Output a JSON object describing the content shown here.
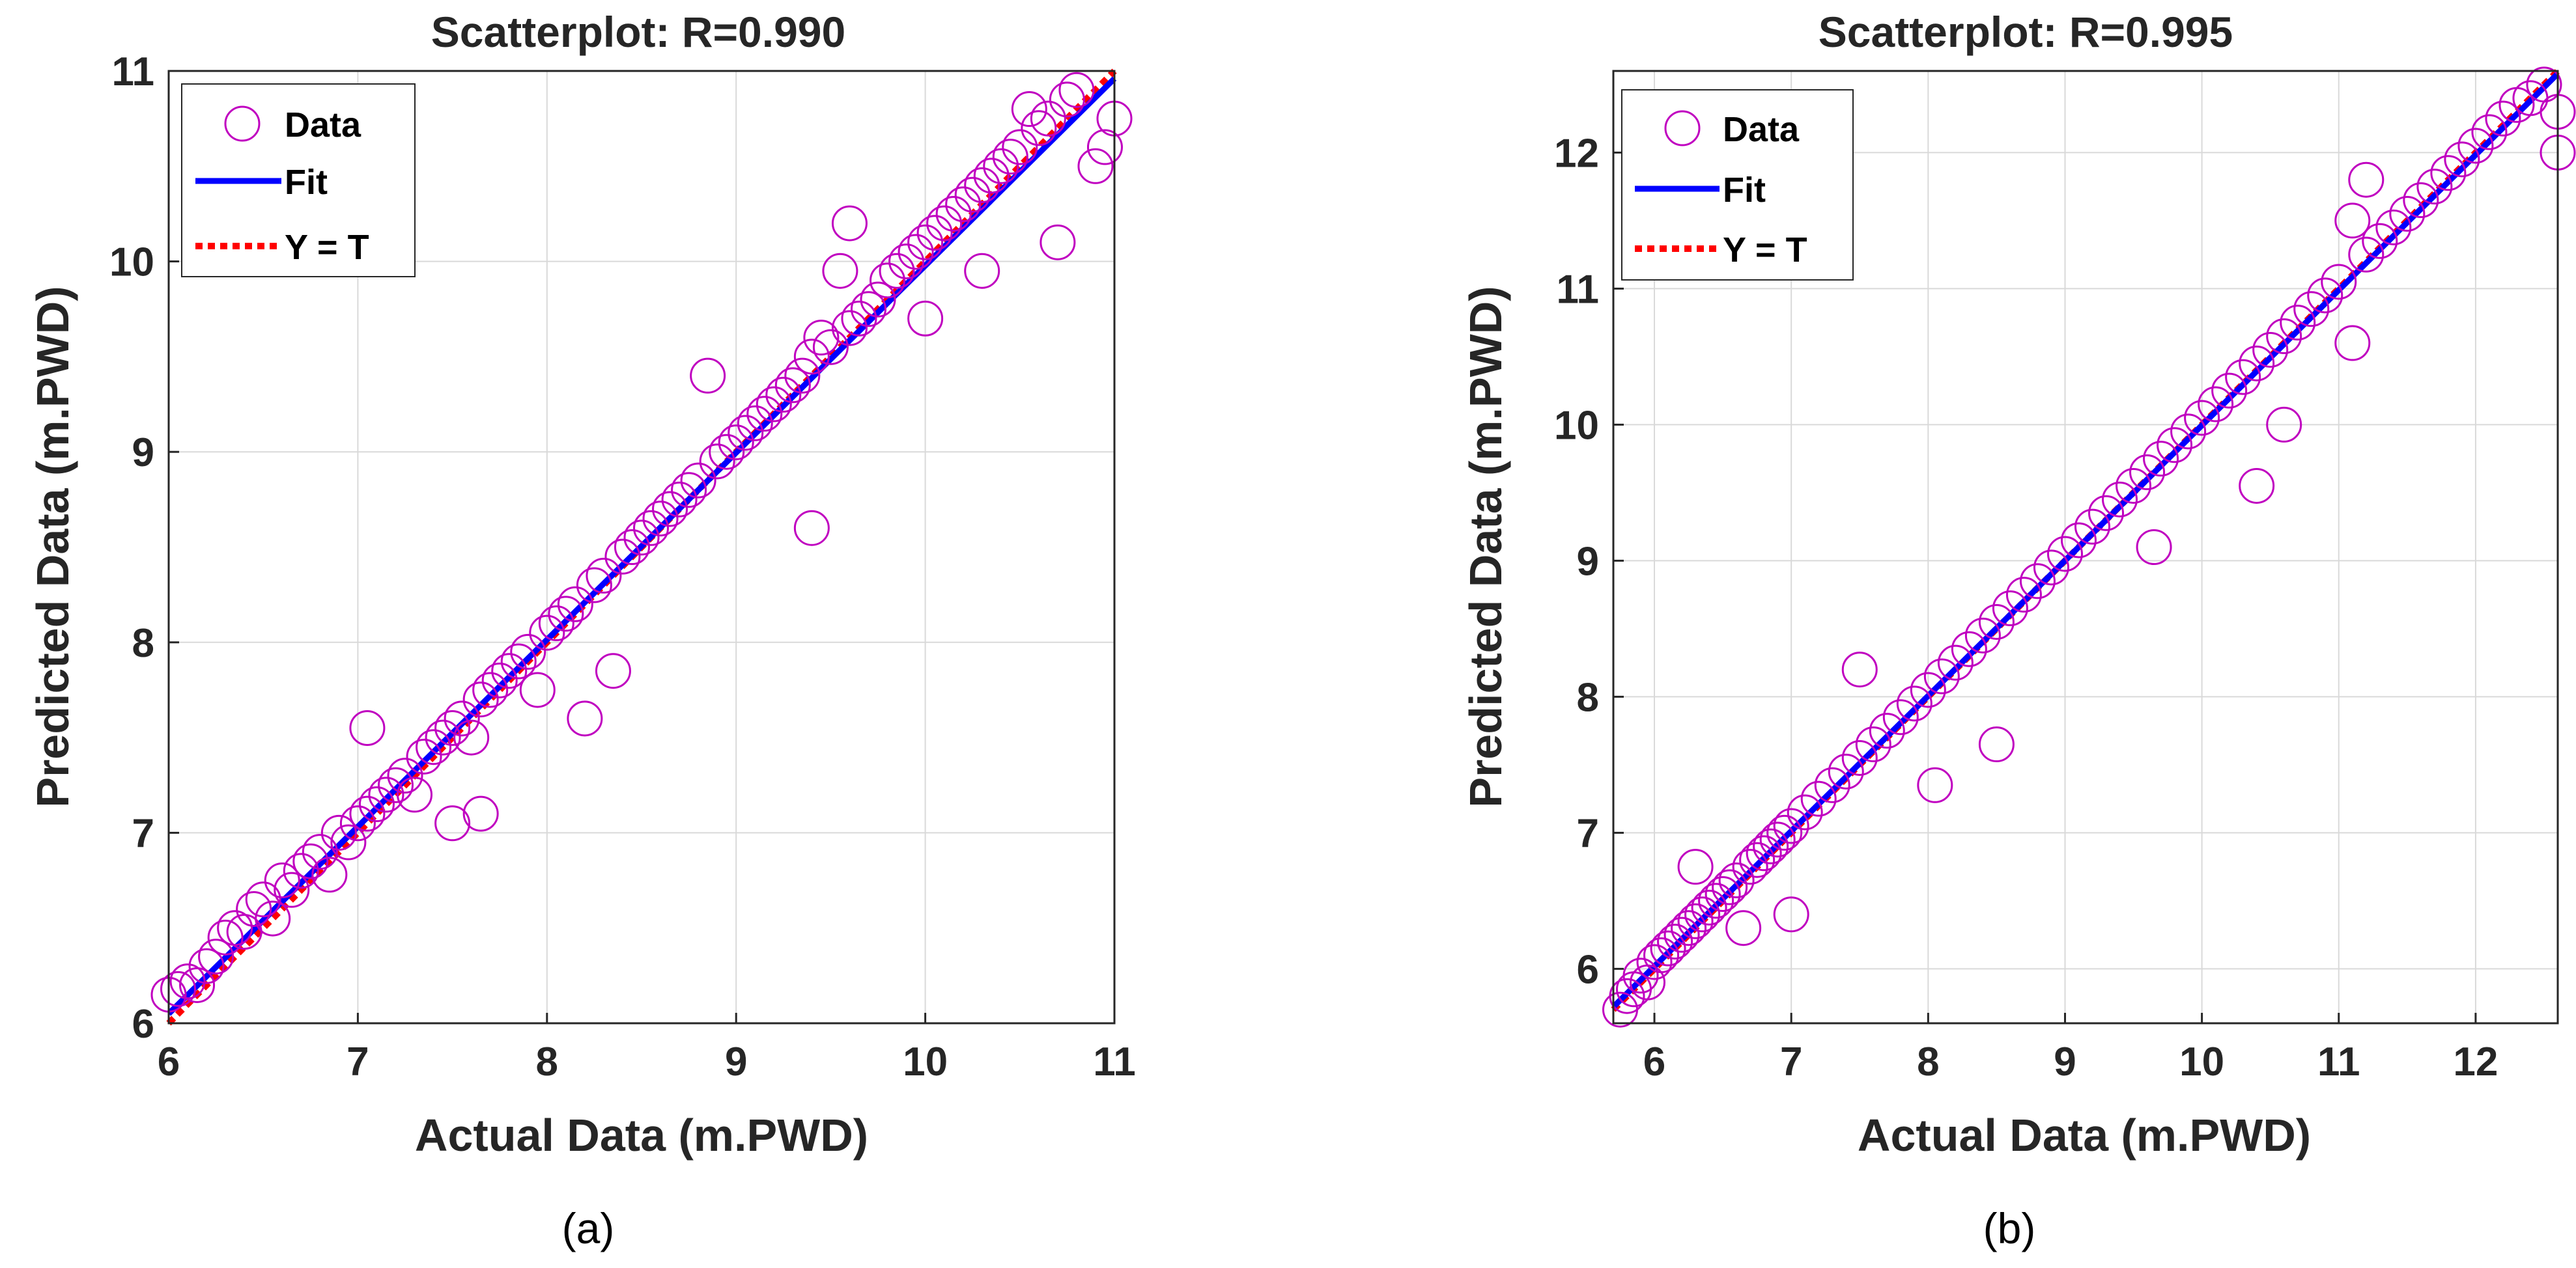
{
  "chart_data": [
    {
      "type": "scatter",
      "panel_label": "(a)",
      "title": "Scatterplot: R=0.990",
      "xlabel": "Actual Data (m.PWD)",
      "ylabel": "Predicted Data (m.PWD)",
      "xlim": [
        6,
        11
      ],
      "ylim": [
        6,
        11
      ],
      "xticks": [
        6,
        7,
        8,
        9,
        10,
        11
      ],
      "yticks": [
        6,
        7,
        8,
        9,
        10,
        11
      ],
      "grid": true,
      "legend_position": "top-left",
      "legend": {
        "data": "Data",
        "fit": "Fit",
        "ideal": "Y = T"
      },
      "fit_line": {
        "x": [
          6,
          11
        ],
        "y": [
          6.05,
          10.96
        ]
      },
      "ideal_line": {
        "x": [
          6,
          11
        ],
        "y": [
          6,
          11
        ]
      },
      "colors": {
        "data": "#c000c0",
        "fit": "#0000ff",
        "ideal": "#ff0000"
      },
      "series": [
        {
          "name": "Data",
          "points": [
            [
              6.0,
              6.15
            ],
            [
              6.05,
              6.18
            ],
            [
              6.1,
              6.22
            ],
            [
              6.15,
              6.2
            ],
            [
              6.2,
              6.3
            ],
            [
              6.25,
              6.35
            ],
            [
              6.3,
              6.45
            ],
            [
              6.35,
              6.5
            ],
            [
              6.4,
              6.48
            ],
            [
              6.45,
              6.6
            ],
            [
              6.5,
              6.65
            ],
            [
              6.55,
              6.55
            ],
            [
              6.6,
              6.75
            ],
            [
              6.65,
              6.7
            ],
            [
              6.7,
              6.8
            ],
            [
              6.75,
              6.85
            ],
            [
              6.8,
              6.9
            ],
            [
              6.85,
              6.78
            ],
            [
              6.9,
              7.0
            ],
            [
              6.95,
              6.95
            ],
            [
              7.0,
              7.05
            ],
            [
              7.05,
              7.1
            ],
            [
              7.05,
              7.55
            ],
            [
              7.1,
              7.15
            ],
            [
              7.15,
              7.2
            ],
            [
              7.2,
              7.25
            ],
            [
              7.25,
              7.3
            ],
            [
              7.3,
              7.2
            ],
            [
              7.35,
              7.4
            ],
            [
              7.4,
              7.45
            ],
            [
              7.45,
              7.5
            ],
            [
              7.5,
              7.05
            ],
            [
              7.5,
              7.55
            ],
            [
              7.55,
              7.6
            ],
            [
              7.6,
              7.5
            ],
            [
              7.65,
              7.1
            ],
            [
              7.65,
              7.7
            ],
            [
              7.7,
              7.75
            ],
            [
              7.75,
              7.8
            ],
            [
              7.8,
              7.85
            ],
            [
              7.85,
              7.9
            ],
            [
              7.9,
              7.95
            ],
            [
              7.95,
              7.75
            ],
            [
              8.0,
              8.05
            ],
            [
              8.05,
              8.1
            ],
            [
              8.1,
              8.15
            ],
            [
              8.15,
              8.2
            ],
            [
              8.2,
              7.6
            ],
            [
              8.25,
              8.3
            ],
            [
              8.3,
              8.35
            ],
            [
              8.35,
              7.85
            ],
            [
              8.4,
              8.45
            ],
            [
              8.45,
              8.5
            ],
            [
              8.5,
              8.55
            ],
            [
              8.55,
              8.6
            ],
            [
              8.6,
              8.65
            ],
            [
              8.65,
              8.7
            ],
            [
              8.7,
              8.75
            ],
            [
              8.75,
              8.8
            ],
            [
              8.8,
              8.85
            ],
            [
              8.85,
              9.4
            ],
            [
              8.9,
              8.95
            ],
            [
              8.95,
              9.0
            ],
            [
              9.0,
              9.05
            ],
            [
              9.05,
              9.1
            ],
            [
              9.1,
              9.15
            ],
            [
              9.15,
              9.2
            ],
            [
              9.2,
              9.25
            ],
            [
              9.25,
              9.3
            ],
            [
              9.3,
              9.35
            ],
            [
              9.35,
              9.4
            ],
            [
              9.4,
              8.6
            ],
            [
              9.4,
              9.5
            ],
            [
              9.45,
              9.6
            ],
            [
              9.5,
              9.55
            ],
            [
              9.55,
              9.95
            ],
            [
              9.6,
              10.2
            ],
            [
              9.6,
              9.65
            ],
            [
              9.65,
              9.7
            ],
            [
              9.7,
              9.75
            ],
            [
              9.75,
              9.8
            ],
            [
              9.8,
              9.9
            ],
            [
              9.85,
              9.95
            ],
            [
              9.9,
              10.0
            ],
            [
              9.95,
              10.05
            ],
            [
              10.0,
              10.1
            ],
            [
              10.0,
              9.7
            ],
            [
              10.05,
              10.15
            ],
            [
              10.1,
              10.2
            ],
            [
              10.15,
              10.25
            ],
            [
              10.2,
              10.3
            ],
            [
              10.25,
              10.35
            ],
            [
              10.3,
              10.4
            ],
            [
              10.3,
              9.95
            ],
            [
              10.35,
              10.45
            ],
            [
              10.4,
              10.5
            ],
            [
              10.45,
              10.55
            ],
            [
              10.5,
              10.6
            ],
            [
              10.55,
              10.8
            ],
            [
              10.6,
              10.7
            ],
            [
              10.65,
              10.75
            ],
            [
              10.7,
              10.1
            ],
            [
              10.75,
              10.85
            ],
            [
              10.8,
              10.9
            ],
            [
              10.9,
              10.5
            ],
            [
              10.95,
              10.6
            ],
            [
              11.0,
              10.75
            ]
          ]
        }
      ]
    },
    {
      "type": "scatter",
      "panel_label": "(b)",
      "title": "Scatterplot: R=0.995",
      "xlabel": "Actual Data (m.PWD)",
      "ylabel": "Predicted Data (m.PWD)",
      "xlim": [
        5.7,
        12.6
      ],
      "ylim": [
        5.6,
        12.6
      ],
      "xticks": [
        6,
        7,
        8,
        9,
        10,
        11,
        12
      ],
      "yticks": [
        6,
        7,
        8,
        9,
        10,
        11,
        12
      ],
      "grid": true,
      "legend_position": "top-left",
      "legend": {
        "data": "Data",
        "fit": "Fit",
        "ideal": "Y = T"
      },
      "fit_line": {
        "x": [
          5.7,
          12.6
        ],
        "y": [
          5.72,
          12.58
        ]
      },
      "ideal_line": {
        "x": [
          5.7,
          12.6
        ],
        "y": [
          5.7,
          12.6
        ]
      },
      "colors": {
        "data": "#c000c0",
        "fit": "#0000ff",
        "ideal": "#ff0000"
      },
      "series": [
        {
          "name": "Data",
          "points": [
            [
              5.75,
              5.7
            ],
            [
              5.8,
              5.8
            ],
            [
              5.85,
              5.85
            ],
            [
              5.9,
              5.95
            ],
            [
              5.95,
              5.9
            ],
            [
              6.0,
              6.05
            ],
            [
              6.05,
              6.1
            ],
            [
              6.1,
              6.15
            ],
            [
              6.15,
              6.2
            ],
            [
              6.2,
              6.25
            ],
            [
              6.25,
              6.3
            ],
            [
              6.3,
              6.75
            ],
            [
              6.3,
              6.35
            ],
            [
              6.35,
              6.4
            ],
            [
              6.4,
              6.45
            ],
            [
              6.45,
              6.5
            ],
            [
              6.5,
              6.55
            ],
            [
              6.55,
              6.6
            ],
            [
              6.6,
              6.65
            ],
            [
              6.65,
              6.3
            ],
            [
              6.7,
              6.75
            ],
            [
              6.75,
              6.8
            ],
            [
              6.8,
              6.85
            ],
            [
              6.85,
              6.9
            ],
            [
              6.9,
              6.95
            ],
            [
              6.95,
              7.0
            ],
            [
              7.0,
              6.4
            ],
            [
              7.0,
              7.05
            ],
            [
              7.1,
              7.15
            ],
            [
              7.2,
              7.25
            ],
            [
              7.3,
              7.35
            ],
            [
              7.4,
              7.45
            ],
            [
              7.5,
              8.2
            ],
            [
              7.5,
              7.55
            ],
            [
              7.6,
              7.65
            ],
            [
              7.7,
              7.75
            ],
            [
              7.8,
              7.85
            ],
            [
              7.9,
              7.95
            ],
            [
              8.0,
              8.05
            ],
            [
              8.05,
              7.35
            ],
            [
              8.1,
              8.15
            ],
            [
              8.2,
              8.25
            ],
            [
              8.3,
              8.35
            ],
            [
              8.4,
              8.45
            ],
            [
              8.5,
              7.65
            ],
            [
              8.5,
              8.55
            ],
            [
              8.6,
              8.65
            ],
            [
              8.7,
              8.75
            ],
            [
              8.8,
              8.85
            ],
            [
              8.9,
              8.95
            ],
            [
              9.0,
              9.05
            ],
            [
              9.1,
              9.15
            ],
            [
              9.2,
              9.25
            ],
            [
              9.3,
              9.35
            ],
            [
              9.4,
              9.45
            ],
            [
              9.5,
              9.55
            ],
            [
              9.6,
              9.65
            ],
            [
              9.65,
              9.1
            ],
            [
              9.7,
              9.75
            ],
            [
              9.8,
              9.85
            ],
            [
              9.9,
              9.95
            ],
            [
              10.0,
              10.05
            ],
            [
              10.1,
              10.15
            ],
            [
              10.2,
              10.25
            ],
            [
              10.3,
              10.35
            ],
            [
              10.4,
              9.55
            ],
            [
              10.4,
              10.45
            ],
            [
              10.5,
              10.55
            ],
            [
              10.6,
              10.0
            ],
            [
              10.6,
              10.65
            ],
            [
              10.7,
              10.75
            ],
            [
              10.8,
              10.85
            ],
            [
              10.9,
              10.95
            ],
            [
              11.0,
              11.05
            ],
            [
              11.1,
              11.5
            ],
            [
              11.1,
              10.6
            ],
            [
              11.2,
              11.8
            ],
            [
              11.2,
              11.25
            ],
            [
              11.3,
              11.35
            ],
            [
              11.4,
              11.45
            ],
            [
              11.5,
              11.55
            ],
            [
              11.6,
              11.65
            ],
            [
              11.7,
              11.75
            ],
            [
              11.8,
              11.85
            ],
            [
              11.9,
              11.95
            ],
            [
              12.0,
              12.05
            ],
            [
              12.1,
              12.15
            ],
            [
              12.2,
              12.25
            ],
            [
              12.3,
              12.35
            ],
            [
              12.4,
              12.4
            ],
            [
              12.5,
              12.5
            ],
            [
              12.6,
              12.0
            ],
            [
              12.6,
              12.3
            ]
          ]
        }
      ]
    }
  ]
}
